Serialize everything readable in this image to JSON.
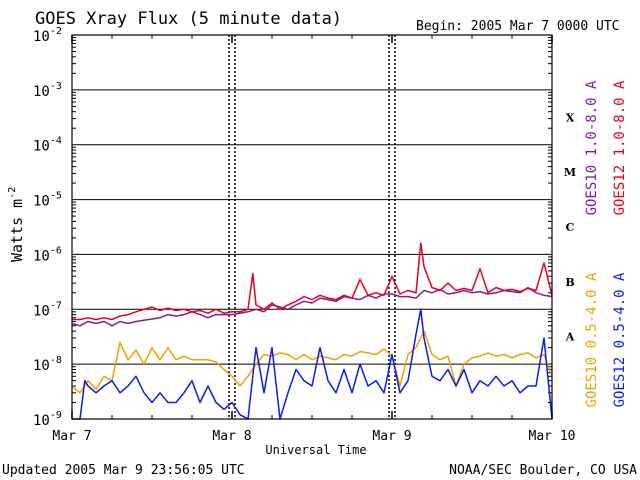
{
  "chart_data": {
    "type": "line",
    "title": "GOES Xray Flux (5 minute data)",
    "begin_label": "Begin:  2005 Mar 7 0000 UTC",
    "xlabel": "Universal Time",
    "ylabel": "Watts m",
    "ylabel_exponent": "-2",
    "footer_left": "Updated 2005 Mar  9 23:56:05 UTC",
    "footer_right": "NOAA/SEC Boulder, CO USA",
    "x_tick_labels": [
      "Mar 7",
      "Mar 8",
      "Mar 9",
      "Mar 10"
    ],
    "xlim_days": [
      0,
      3
    ],
    "y_scale": "log",
    "ylim": [
      1e-09,
      0.01
    ],
    "y_ticks": [
      {
        "base": "10",
        "exp": "-2"
      },
      {
        "base": "10",
        "exp": "-3"
      },
      {
        "base": "10",
        "exp": "-4"
      },
      {
        "base": "10",
        "exp": "-5"
      },
      {
        "base": "10",
        "exp": "-6"
      },
      {
        "base": "10",
        "exp": "-7"
      },
      {
        "base": "10",
        "exp": "-8"
      },
      {
        "base": "10",
        "exp": "-9"
      }
    ],
    "flare_classes": [
      "X",
      "M",
      "C",
      "B",
      "A"
    ],
    "grid": true,
    "legend_position": "right",
    "series": [
      {
        "name": "GOES10 1.0-8.0 A",
        "color": "#7b1fa2",
        "x": [
          0.0,
          0.05,
          0.1,
          0.15,
          0.2,
          0.25,
          0.3,
          0.35,
          0.4,
          0.55,
          0.6,
          0.65,
          0.7,
          0.75,
          0.8,
          0.85,
          0.9,
          0.95,
          1.0,
          1.05,
          1.1,
          1.15,
          1.2,
          1.25,
          1.3,
          1.35,
          1.4,
          1.45,
          1.5,
          1.55,
          1.6,
          1.65,
          1.7,
          1.75,
          1.8,
          1.85,
          1.9,
          1.95,
          2.0,
          2.05,
          2.1,
          2.15,
          2.2,
          2.25,
          2.3,
          2.35,
          2.4,
          2.45,
          2.5,
          2.55,
          2.6,
          2.65,
          2.7,
          2.75,
          2.8,
          2.85,
          2.9,
          2.95,
          3.0
        ],
        "y": [
          5.5e-08,
          5e-08,
          6e-08,
          5.5e-08,
          6e-08,
          5e-08,
          6e-08,
          5.5e-08,
          6e-08,
          7e-08,
          8e-08,
          7.5e-08,
          8e-08,
          9e-08,
          8e-08,
          7e-08,
          8e-08,
          8e-08,
          8e-08,
          8.5e-08,
          9e-08,
          1e-07,
          9e-08,
          1.2e-07,
          1.1e-07,
          1e-07,
          1.2e-07,
          1.4e-07,
          1.3e-07,
          1.6e-07,
          1.5e-07,
          1.4e-07,
          1.7e-07,
          1.6e-07,
          1.5e-07,
          1.8e-07,
          1.6e-07,
          1.9e-07,
          1.9e-07,
          1.7e-07,
          1.7e-07,
          1.6e-07,
          2.2e-07,
          2e-07,
          2.3e-07,
          1.9e-07,
          2e-07,
          2.2e-07,
          2e-07,
          2.1e-07,
          1.9e-07,
          2e-07,
          2.2e-07,
          2.1e-07,
          2e-07,
          2.5e-07,
          2e-07,
          1.8e-07,
          1.7e-07
        ]
      },
      {
        "name": "GOES12 1.0-8.0 A",
        "color": "#e8001c",
        "x": [
          0.0,
          0.05,
          0.1,
          0.15,
          0.2,
          0.25,
          0.3,
          0.35,
          0.4,
          0.45,
          0.5,
          0.55,
          0.6,
          0.65,
          0.7,
          0.75,
          0.8,
          0.85,
          0.9,
          0.95,
          1.0,
          1.05,
          1.1,
          1.13,
          1.15,
          1.2,
          1.25,
          1.3,
          1.35,
          1.4,
          1.45,
          1.5,
          1.55,
          1.6,
          1.65,
          1.7,
          1.75,
          1.8,
          1.85,
          1.9,
          1.95,
          2.0,
          2.05,
          2.1,
          2.15,
          2.18,
          2.2,
          2.25,
          2.3,
          2.35,
          2.4,
          2.45,
          2.5,
          2.55,
          2.6,
          2.65,
          2.7,
          2.75,
          2.8,
          2.85,
          2.9,
          2.95,
          3.0
        ],
        "y": [
          6.5e-08,
          6.5e-08,
          7e-08,
          6.5e-08,
          7e-08,
          6.5e-08,
          7.5e-08,
          8e-08,
          9e-08,
          1e-07,
          1.1e-07,
          9.5e-08,
          1.05e-07,
          9.5e-08,
          1e-07,
          9e-08,
          9.5e-08,
          8.5e-08,
          1e-07,
          8.5e-08,
          9e-08,
          9e-08,
          1e-07,
          4.5e-07,
          1.2e-07,
          1e-07,
          1.3e-07,
          1e-07,
          1.2e-07,
          1.4e-07,
          1.7e-07,
          1.5e-07,
          1.8e-07,
          1.6e-07,
          1.5e-07,
          1.8e-07,
          1.6e-07,
          3.5e-07,
          1.8e-07,
          2e-07,
          1.8e-07,
          4e-07,
          1.9e-07,
          2.2e-07,
          2e-07,
          1.6e-06,
          6e-07,
          2.5e-07,
          2.2e-07,
          3e-07,
          2.2e-07,
          2.4e-07,
          2.2e-07,
          5.5e-07,
          2e-07,
          2.5e-07,
          2.2e-07,
          2.3e-07,
          2.1e-07,
          2.4e-07,
          2.2e-07,
          7e-07,
          1.8e-07
        ]
      },
      {
        "name": "GOES10 0.5-4.0 A",
        "color": "#f5a000",
        "x": [
          0.0,
          0.05,
          0.1,
          0.15,
          0.2,
          0.25,
          0.3,
          0.35,
          0.4,
          0.45,
          0.5,
          0.55,
          0.6,
          0.65,
          0.7,
          0.75,
          0.8,
          0.85,
          0.9,
          0.95,
          1.0,
          1.05,
          1.1,
          1.15,
          1.2,
          1.25,
          1.3,
          1.35,
          1.4,
          1.45,
          1.5,
          1.55,
          1.6,
          1.65,
          1.7,
          1.75,
          1.8,
          1.85,
          1.9,
          1.95,
          2.0,
          2.05,
          2.1,
          2.15,
          2.2,
          2.25,
          2.3,
          2.35,
          2.4,
          2.45,
          2.5,
          2.55,
          2.6,
          2.65,
          2.7,
          2.75,
          2.8,
          2.85,
          2.9,
          2.95,
          3.0
        ],
        "y": [
          4e-09,
          3e-09,
          5e-09,
          3.5e-09,
          6e-09,
          5e-09,
          2.5e-08,
          1.2e-08,
          1.8e-08,
          1e-08,
          2e-08,
          1.2e-08,
          2e-08,
          1.2e-08,
          1.4e-08,
          1.2e-08,
          1.2e-08,
          1.2e-08,
          1.1e-08,
          8e-09,
          6e-09,
          4e-09,
          6e-09,
          1e-08,
          1.5e-08,
          1.4e-08,
          1.6e-08,
          1.5e-08,
          1.2e-08,
          1.5e-08,
          1.2e-08,
          1.4e-08,
          1.3e-08,
          1.2e-08,
          1.5e-08,
          1.4e-08,
          1.7e-08,
          1.6e-08,
          1.5e-08,
          1.9e-08,
          1.4e-08,
          4e-09,
          1.5e-08,
          2e-08,
          4e-08,
          1.5e-08,
          1.2e-08,
          1.4e-08,
          4e-09,
          1e-08,
          1.3e-08,
          1.4e-08,
          1.6e-08,
          1.4e-08,
          1.5e-08,
          1.3e-08,
          1.5e-08,
          1.6e-08,
          1.3e-08,
          1.5e-08,
          6e-09
        ]
      },
      {
        "name": "GOES12 0.5-4.0 A",
        "color": "#0a1ee6",
        "x": [
          0.0,
          0.05,
          0.08,
          0.1,
          0.15,
          0.2,
          0.25,
          0.3,
          0.35,
          0.4,
          0.45,
          0.5,
          0.55,
          0.6,
          0.65,
          0.7,
          0.75,
          0.8,
          0.85,
          0.9,
          0.95,
          1.0,
          1.05,
          1.1,
          1.15,
          1.2,
          1.25,
          1.3,
          1.35,
          1.4,
          1.45,
          1.5,
          1.55,
          1.6,
          1.65,
          1.7,
          1.75,
          1.8,
          1.85,
          1.9,
          1.95,
          2.0,
          2.05,
          2.1,
          2.15,
          2.18,
          2.2,
          2.25,
          2.3,
          2.35,
          2.4,
          2.45,
          2.5,
          2.55,
          2.6,
          2.65,
          2.7,
          2.75,
          2.8,
          2.85,
          2.9,
          2.95,
          3.0
        ],
        "y": [
          1e-09,
          1e-09,
          5e-09,
          4e-09,
          3e-09,
          4e-09,
          5e-09,
          3e-09,
          4e-09,
          6e-09,
          3e-09,
          2e-09,
          3e-09,
          2e-09,
          2e-09,
          3e-09,
          5e-09,
          2e-09,
          4e-09,
          2e-09,
          1.5e-09,
          2e-09,
          1.2e-09,
          1e-09,
          2e-08,
          3e-09,
          2e-08,
          1e-09,
          3e-09,
          8e-09,
          5e-09,
          4e-09,
          2e-08,
          5e-09,
          3e-09,
          8e-09,
          3e-09,
          1e-08,
          4e-09,
          5e-09,
          3e-09,
          1.5e-08,
          3e-09,
          5e-09,
          3.5e-08,
          1e-07,
          3e-08,
          6e-09,
          5e-09,
          8e-09,
          4e-09,
          8e-09,
          3e-09,
          5e-09,
          4e-09,
          6e-09,
          4e-09,
          5e-09,
          3e-09,
          4e-09,
          4e-09,
          3e-08,
          1e-09
        ]
      }
    ]
  }
}
